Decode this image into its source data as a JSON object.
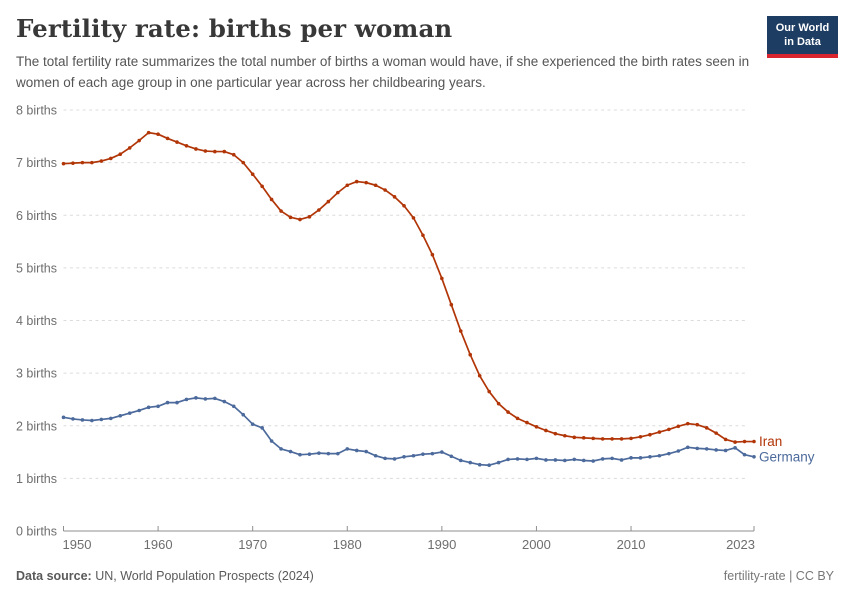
{
  "header": {
    "title": "Fertility rate: births per woman",
    "subtitle": "The total fertility rate summarizes the total number of births a woman would have, if she experienced the birth rates seen in women of each age group in one particular year across her childbearing years."
  },
  "logo": {
    "line1": "Our World",
    "line2": "in Data",
    "bg_color": "#1d3d63",
    "accent_color": "#d8252e"
  },
  "footer": {
    "source_label": "Data source:",
    "source_value": "UN, World Population Prospects (2024)",
    "right": "fertility-rate | CC BY"
  },
  "chart_data": {
    "type": "line",
    "title": "Fertility rate: births per woman",
    "xlabel": "",
    "ylabel": "births",
    "ylim": [
      0,
      8
    ],
    "grid": "horizontal-dashed",
    "legend_position": "end-of-line",
    "x_ticks": [
      1950,
      1960,
      1970,
      1980,
      1990,
      2000,
      2010,
      2023
    ],
    "y_ticks": [
      {
        "value": 0,
        "label": "0 births"
      },
      {
        "value": 1,
        "label": "1 births"
      },
      {
        "value": 2,
        "label": "2 births"
      },
      {
        "value": 3,
        "label": "3 births"
      },
      {
        "value": 4,
        "label": "4 births"
      },
      {
        "value": 5,
        "label": "5 births"
      },
      {
        "value": 6,
        "label": "6 births"
      },
      {
        "value": 7,
        "label": "7 births"
      },
      {
        "value": 8,
        "label": "8 births"
      }
    ],
    "x": [
      1950,
      1951,
      1952,
      1953,
      1954,
      1955,
      1956,
      1957,
      1958,
      1959,
      1960,
      1961,
      1962,
      1963,
      1964,
      1965,
      1966,
      1967,
      1968,
      1969,
      1970,
      1971,
      1972,
      1973,
      1974,
      1975,
      1976,
      1977,
      1978,
      1979,
      1980,
      1981,
      1982,
      1983,
      1984,
      1985,
      1986,
      1987,
      1988,
      1989,
      1990,
      1991,
      1992,
      1993,
      1994,
      1995,
      1996,
      1997,
      1998,
      1999,
      2000,
      2001,
      2002,
      2003,
      2004,
      2005,
      2006,
      2007,
      2008,
      2009,
      2010,
      2011,
      2012,
      2013,
      2014,
      2015,
      2016,
      2017,
      2018,
      2019,
      2020,
      2021,
      2022,
      2023
    ],
    "series": [
      {
        "name": "Iran",
        "color": "#b13507",
        "values": [
          6.98,
          6.99,
          7.0,
          7.0,
          7.03,
          7.08,
          7.16,
          7.28,
          7.42,
          7.57,
          7.54,
          7.46,
          7.39,
          7.32,
          7.26,
          7.22,
          7.21,
          7.21,
          7.15,
          7.0,
          6.78,
          6.55,
          6.3,
          6.08,
          5.96,
          5.92,
          5.97,
          6.1,
          6.26,
          6.43,
          6.57,
          6.64,
          6.62,
          6.57,
          6.48,
          6.35,
          6.18,
          5.95,
          5.62,
          5.25,
          4.8,
          4.3,
          3.8,
          3.35,
          2.95,
          2.65,
          2.42,
          2.26,
          2.14,
          2.06,
          1.98,
          1.91,
          1.85,
          1.81,
          1.78,
          1.77,
          1.76,
          1.75,
          1.75,
          1.75,
          1.76,
          1.79,
          1.83,
          1.88,
          1.93,
          1.99,
          2.04,
          2.02,
          1.96,
          1.86,
          1.74,
          1.69,
          1.7,
          1.7
        ]
      },
      {
        "name": "Germany",
        "color": "#4c6a9c",
        "values": [
          2.16,
          2.13,
          2.11,
          2.1,
          2.12,
          2.14,
          2.19,
          2.24,
          2.29,
          2.35,
          2.37,
          2.44,
          2.44,
          2.5,
          2.53,
          2.51,
          2.52,
          2.46,
          2.37,
          2.21,
          2.03,
          1.96,
          1.71,
          1.56,
          1.51,
          1.45,
          1.46,
          1.48,
          1.47,
          1.47,
          1.56,
          1.53,
          1.51,
          1.43,
          1.38,
          1.37,
          1.41,
          1.43,
          1.46,
          1.47,
          1.5,
          1.42,
          1.34,
          1.3,
          1.26,
          1.25,
          1.3,
          1.36,
          1.37,
          1.36,
          1.38,
          1.35,
          1.35,
          1.34,
          1.36,
          1.34,
          1.33,
          1.37,
          1.38,
          1.35,
          1.39,
          1.39,
          1.41,
          1.43,
          1.47,
          1.52,
          1.59,
          1.57,
          1.56,
          1.54,
          1.53,
          1.58,
          1.45,
          1.41
        ]
      }
    ]
  }
}
